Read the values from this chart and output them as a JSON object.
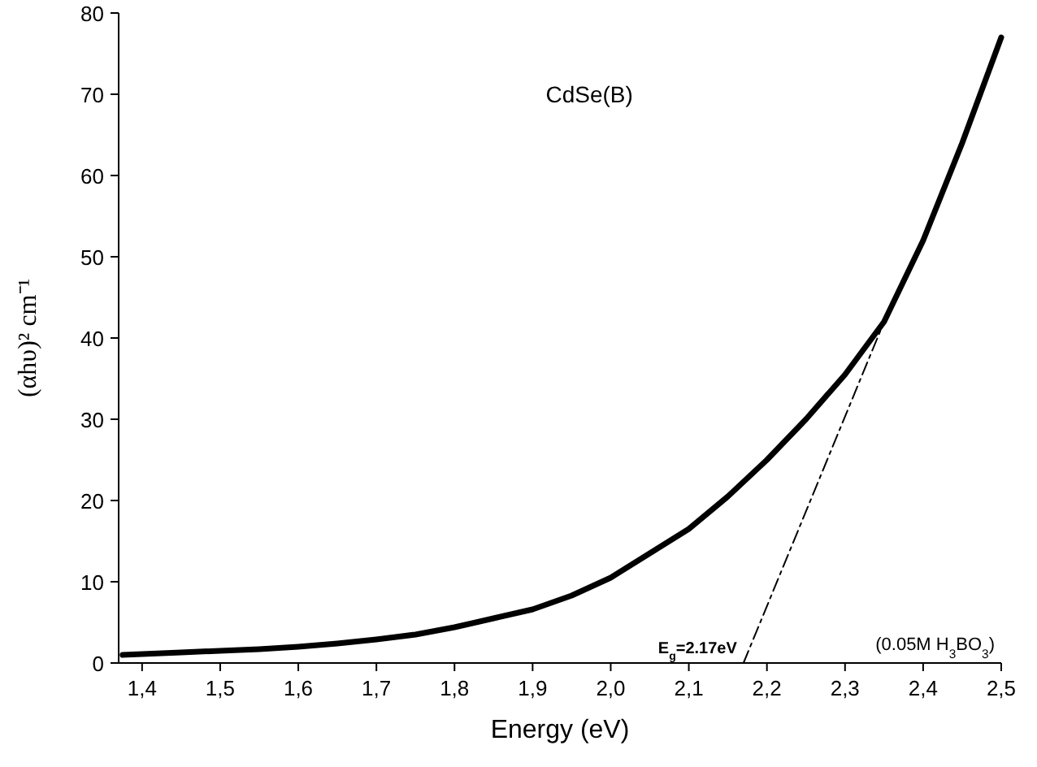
{
  "chart_data": {
    "type": "line",
    "xlabel": "Energy (eV)",
    "ylabel": "(αhυ)² cm⁻¹",
    "xlim": [
      1.37,
      2.5
    ],
    "ylim": [
      0,
      80
    ],
    "xticks": [
      {
        "value": 1.4,
        "label": "1,4"
      },
      {
        "value": 1.5,
        "label": "1,5"
      },
      {
        "value": 1.6,
        "label": "1,6"
      },
      {
        "value": 1.7,
        "label": "1,7"
      },
      {
        "value": 1.8,
        "label": "1,8"
      },
      {
        "value": 1.9,
        "label": "1,9"
      },
      {
        "value": 2.0,
        "label": "2,0"
      },
      {
        "value": 2.1,
        "label": "2,1"
      },
      {
        "value": 2.2,
        "label": "2,2"
      },
      {
        "value": 2.3,
        "label": "2,3"
      },
      {
        "value": 2.4,
        "label": "2,4"
      },
      {
        "value": 2.5,
        "label": "2,5"
      }
    ],
    "yticks": [
      0,
      10,
      20,
      30,
      40,
      50,
      60,
      70,
      80
    ],
    "series": [
      {
        "color": "#000000",
        "x": [
          1.375,
          1.4,
          1.45,
          1.5,
          1.55,
          1.6,
          1.65,
          1.7,
          1.75,
          1.8,
          1.85,
          1.9,
          1.95,
          2.0,
          2.05,
          2.1,
          2.15,
          2.2,
          2.25,
          2.3,
          2.35,
          2.4,
          2.45,
          2.5
        ],
        "values": [
          1,
          1.1,
          1.3,
          1.5,
          1.7,
          2,
          2.4,
          2.9,
          3.5,
          4.4,
          5.5,
          6.6,
          8.3,
          10.5,
          13.5,
          16.5,
          20.5,
          25,
          30,
          35.5,
          42,
          52,
          64,
          77
        ]
      },
      {
        "type": "line",
        "line_style": "dashed",
        "color": "#000000",
        "x": [
          2.17,
          2.35
        ],
        "values": [
          0,
          42
        ]
      }
    ],
    "annotations": [
      "CdSe(B)",
      {
        "text": "E$_{g}$=2.17eV",
        "x": 2.17,
        "y": 0
      },
      "(0.05M H$_{3}$BO$_{3}$)"
    ]
  }
}
